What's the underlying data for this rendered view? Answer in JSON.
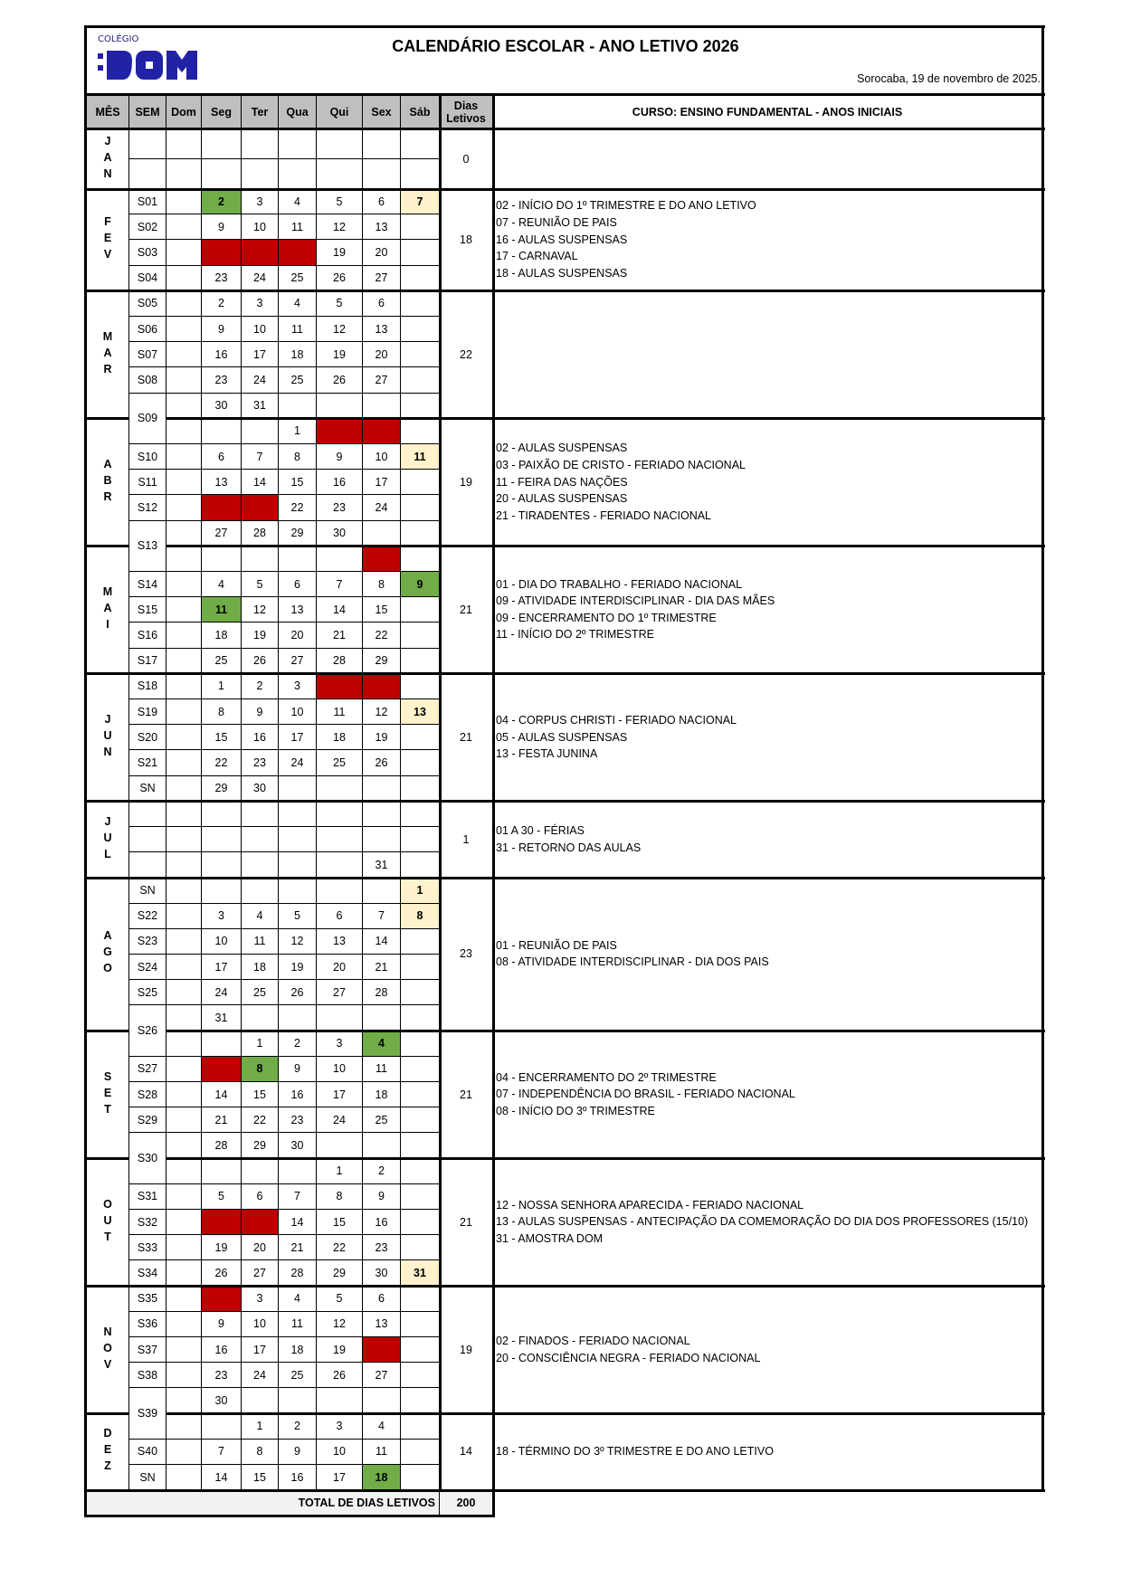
{
  "header": {
    "logo_small": "COLÉGIO",
    "logo_big": ":DOM",
    "title": "CALENDÁRIO ESCOLAR - ANO LETIVO 2026",
    "date": "Sorocaba, 19 de novembro de 2025."
  },
  "columns": [
    "MÊS",
    "SEM",
    "Dom",
    "Seg",
    "Ter",
    "Qua",
    "Qui",
    "Sex",
    "Sáb",
    "Dias Letivos"
  ],
  "course": "CURSO: ENSINO FUNDAMENTAL - ANOS INICIAIS",
  "colors": {
    "header_gray": "#bfbfbf",
    "green": "#70ad47",
    "red": "#c00000",
    "yellow": "#fff2cc",
    "logo_blue": "#2222a6",
    "total_bg": "#f2f2f2"
  },
  "months": [
    {
      "name": "JAN",
      "dias": "0",
      "notes": [],
      "rows": [
        {
          "sem": "",
          "days": [
            "",
            "",
            "",
            "",
            "",
            "",
            ""
          ]
        },
        {
          "sem": "",
          "days": [
            "",
            "",
            "",
            "",
            "",
            "",
            ""
          ]
        }
      ]
    },
    {
      "name": "FEV",
      "dias": "18",
      "notes": [
        "02 - INÍCIO DO 1º TRIMESTRE E DO ANO LETIVO",
        "07 - REUNIÃO DE PAIS",
        "16 - AULAS SUSPENSAS",
        "17 - CARNAVAL",
        "18 - AULAS SUSPENSAS"
      ],
      "rows": [
        {
          "sem": "S01",
          "days": [
            "",
            "2",
            "3",
            "4",
            "5",
            "6",
            "7"
          ],
          "marks": {
            "Seg": "green",
            "Sáb": "yellow"
          }
        },
        {
          "sem": "S02",
          "days": [
            "",
            "9",
            "10",
            "11",
            "12",
            "13",
            ""
          ]
        },
        {
          "sem": "S03",
          "days": [
            "",
            "",
            "",
            "",
            "19",
            "20",
            ""
          ],
          "marks": {
            "Seg": "red",
            "Ter": "red",
            "Qua": "red"
          }
        },
        {
          "sem": "S04",
          "days": [
            "",
            "23",
            "24",
            "25",
            "26",
            "27",
            ""
          ]
        }
      ]
    },
    {
      "name": "MAR",
      "dias": "22",
      "notes": [],
      "rows": [
        {
          "sem": "S05",
          "days": [
            "",
            "2",
            "3",
            "4",
            "5",
            "6",
            ""
          ]
        },
        {
          "sem": "S06",
          "days": [
            "",
            "9",
            "10",
            "11",
            "12",
            "13",
            ""
          ]
        },
        {
          "sem": "S07",
          "days": [
            "",
            "16",
            "17",
            "18",
            "19",
            "20",
            ""
          ]
        },
        {
          "sem": "S08",
          "days": [
            "",
            "23",
            "24",
            "25",
            "26",
            "27",
            ""
          ]
        },
        {
          "sem": "S09",
          "days": [
            "",
            "30",
            "31",
            "",
            "",
            "",
            ""
          ]
        }
      ]
    },
    {
      "name": "ABR",
      "dias": "19",
      "notes": [
        "02 - AULAS SUSPENSAS",
        "03 - PAIXÃO DE CRISTO - FERIADO NACIONAL",
        "11 - FEIRA DAS NAÇÕES",
        "20 - AULAS SUSPENSAS",
        "21 - TIRADENTES - FERIADO NACIONAL"
      ],
      "rows": [
        {
          "sem": null,
          "days": [
            "",
            "",
            "",
            "1",
            "",
            "",
            ""
          ],
          "marks": {
            "Qui": "red",
            "Sex": "red"
          }
        },
        {
          "sem": "S10",
          "days": [
            "",
            "6",
            "7",
            "8",
            "9",
            "10",
            "11"
          ],
          "marks": {
            "Sáb": "yellow"
          }
        },
        {
          "sem": "S11",
          "days": [
            "",
            "13",
            "14",
            "15",
            "16",
            "17",
            ""
          ]
        },
        {
          "sem": "S12",
          "days": [
            "",
            "",
            "",
            "22",
            "23",
            "24",
            ""
          ],
          "marks": {
            "Seg": "red",
            "Ter": "red"
          }
        },
        {
          "sem": "S13",
          "days": [
            "",
            "27",
            "28",
            "29",
            "30",
            "",
            ""
          ]
        }
      ]
    },
    {
      "name": "MAI",
      "dias": "21",
      "notes": [
        "01 - DIA DO TRABALHO - FERIADO NACIONAL",
        "09 - ATIVIDADE INTERDISCIPLINAR - DIA DAS MÃES",
        "09 - ENCERRAMENTO DO 1º TRIMESTRE",
        "11 - INÍCIO DO 2º TRIMESTRE"
      ],
      "rows": [
        {
          "sem": null,
          "days": [
            "",
            "",
            "",
            "",
            "",
            "",
            ""
          ],
          "marks": {
            "Sex": "red"
          }
        },
        {
          "sem": "S14",
          "days": [
            "",
            "4",
            "5",
            "6",
            "7",
            "8",
            "9"
          ],
          "marks": {
            "Sáb": "green"
          }
        },
        {
          "sem": "S15",
          "days": [
            "",
            "11",
            "12",
            "13",
            "14",
            "15",
            ""
          ],
          "marks": {
            "Seg": "green"
          }
        },
        {
          "sem": "S16",
          "days": [
            "",
            "18",
            "19",
            "20",
            "21",
            "22",
            ""
          ]
        },
        {
          "sem": "S17",
          "days": [
            "",
            "25",
            "26",
            "27",
            "28",
            "29",
            ""
          ]
        }
      ]
    },
    {
      "name": "JUN",
      "dias": "21",
      "notes": [
        "04 - CORPUS CHRISTI - FERIADO NACIONAL",
        "05 - AULAS SUSPENSAS",
        "13 - FESTA JUNINA"
      ],
      "rows": [
        {
          "sem": "S18",
          "days": [
            "",
            "1",
            "2",
            "3",
            "",
            "",
            ""
          ],
          "marks": {
            "Qui": "red",
            "Sex": "red"
          }
        },
        {
          "sem": "S19",
          "days": [
            "",
            "8",
            "9",
            "10",
            "11",
            "12",
            "13"
          ],
          "marks": {
            "Sáb": "yellow"
          }
        },
        {
          "sem": "S20",
          "days": [
            "",
            "15",
            "16",
            "17",
            "18",
            "19",
            ""
          ]
        },
        {
          "sem": "S21",
          "days": [
            "",
            "22",
            "23",
            "24",
            "25",
            "26",
            ""
          ]
        },
        {
          "sem": "SN",
          "days": [
            "",
            "29",
            "30",
            "",
            "",
            "",
            ""
          ]
        }
      ]
    },
    {
      "name": "JUL",
      "dias": "1",
      "notes": [
        "01 A 30 - FÉRIAS",
        "31 - RETORNO DAS AULAS"
      ],
      "rows": [
        {
          "sem": "",
          "days": [
            "",
            "",
            "",
            "",
            "",
            "",
            ""
          ]
        },
        {
          "sem": "",
          "days": [
            "",
            "",
            "",
            "",
            "",
            "",
            ""
          ]
        },
        {
          "sem": "",
          "days": [
            "",
            "",
            "",
            "",
            "",
            "31",
            ""
          ]
        }
      ]
    },
    {
      "name": "AGO",
      "dias": "23",
      "notes": [
        "01 - REUNIÃO DE PAIS",
        "08 - ATIVIDADE INTERDISCIPLINAR - DIA DOS PAIS"
      ],
      "rows": [
        {
          "sem": "SN",
          "days": [
            "",
            "",
            "",
            "",
            "",
            "",
            "1"
          ],
          "marks": {
            "Sáb": "yellow"
          }
        },
        {
          "sem": "S22",
          "days": [
            "",
            "3",
            "4",
            "5",
            "6",
            "7",
            "8"
          ],
          "marks": {
            "Sáb": "yellow"
          }
        },
        {
          "sem": "S23",
          "days": [
            "",
            "10",
            "11",
            "12",
            "13",
            "14",
            ""
          ]
        },
        {
          "sem": "S24",
          "days": [
            "",
            "17",
            "18",
            "19",
            "20",
            "21",
            ""
          ]
        },
        {
          "sem": "S25",
          "days": [
            "",
            "24",
            "25",
            "26",
            "27",
            "28",
            ""
          ]
        },
        {
          "sem": "S26",
          "days": [
            "",
            "31",
            "",
            "",
            "",
            "",
            ""
          ]
        }
      ]
    },
    {
      "name": "SET",
      "dias": "21",
      "notes": [
        "04 - ENCERRAMENTO DO 2º TRIMESTRE",
        "07 - INDEPENDÊNCIA DO BRASIL - FERIADO NACIONAL",
        "08 - INÍCIO DO 3º TRIMESTRE"
      ],
      "rows": [
        {
          "sem": null,
          "days": [
            "",
            "",
            "1",
            "2",
            "3",
            "4",
            ""
          ],
          "marks": {
            "Sex": "green"
          }
        },
        {
          "sem": "S27",
          "days": [
            "",
            "",
            "8",
            "9",
            "10",
            "11",
            ""
          ],
          "marks": {
            "Seg": "red",
            "Ter": "green"
          }
        },
        {
          "sem": "S28",
          "days": [
            "",
            "14",
            "15",
            "16",
            "17",
            "18",
            ""
          ]
        },
        {
          "sem": "S29",
          "days": [
            "",
            "21",
            "22",
            "23",
            "24",
            "25",
            ""
          ]
        },
        {
          "sem": "S30",
          "days": [
            "",
            "28",
            "29",
            "30",
            "",
            "",
            ""
          ]
        }
      ]
    },
    {
      "name": "OUT",
      "dias": "21",
      "notes": [
        "12 - NOSSA SENHORA APARECIDA - FERIADO NACIONAL",
        "13 - AULAS SUSPENSAS - ANTECIPAÇÃO DA COMEMORAÇÃO DO DIA DOS PROFESSORES (15/10)",
        "31 - AMOSTRA DOM"
      ],
      "rows": [
        {
          "sem": null,
          "days": [
            "",
            "",
            "",
            "",
            "1",
            "2",
            ""
          ]
        },
        {
          "sem": "S31",
          "days": [
            "",
            "5",
            "6",
            "7",
            "8",
            "9",
            ""
          ]
        },
        {
          "sem": "S32",
          "days": [
            "",
            "",
            "",
            "14",
            "15",
            "16",
            ""
          ],
          "marks": {
            "Seg": "red",
            "Ter": "red"
          }
        },
        {
          "sem": "S33",
          "days": [
            "",
            "19",
            "20",
            "21",
            "22",
            "23",
            ""
          ]
        },
        {
          "sem": "S34",
          "days": [
            "",
            "26",
            "27",
            "28",
            "29",
            "30",
            "31"
          ],
          "marks": {
            "Sáb": "yellow"
          }
        }
      ]
    },
    {
      "name": "NOV",
      "dias": "19",
      "notes": [
        "02 - FINADOS - FERIADO NACIONAL",
        "20 - CONSCIÊNCIA NEGRA - FERIADO NACIONAL"
      ],
      "rows": [
        {
          "sem": "S35",
          "days": [
            "",
            "",
            "3",
            "4",
            "5",
            "6",
            ""
          ],
          "marks": {
            "Seg": "red"
          }
        },
        {
          "sem": "S36",
          "days": [
            "",
            "9",
            "10",
            "11",
            "12",
            "13",
            ""
          ]
        },
        {
          "sem": "S37",
          "days": [
            "",
            "16",
            "17",
            "18",
            "19",
            "",
            ""
          ],
          "marks": {
            "Sex": "red"
          }
        },
        {
          "sem": "S38",
          "days": [
            "",
            "23",
            "24",
            "25",
            "26",
            "27",
            ""
          ]
        },
        {
          "sem": "S39",
          "days": [
            "",
            "30",
            "",
            "",
            "",
            "",
            ""
          ]
        }
      ]
    },
    {
      "name": "DEZ",
      "dias": "14",
      "notes": [
        "18 - TÉRMINO DO 3º TRIMESTRE E DO ANO LETIVO"
      ],
      "rows": [
        {
          "sem": null,
          "days": [
            "",
            "",
            "1",
            "2",
            "3",
            "4",
            ""
          ]
        },
        {
          "sem": "S40",
          "days": [
            "",
            "7",
            "8",
            "9",
            "10",
            "11",
            ""
          ]
        },
        {
          "sem": "SN",
          "days": [
            "",
            "14",
            "15",
            "16",
            "17",
            "18",
            ""
          ],
          "marks": {
            "Sex": "green"
          }
        }
      ]
    }
  ],
  "total": {
    "label": "TOTAL DE DIAS LETIVOS",
    "value": "200"
  }
}
